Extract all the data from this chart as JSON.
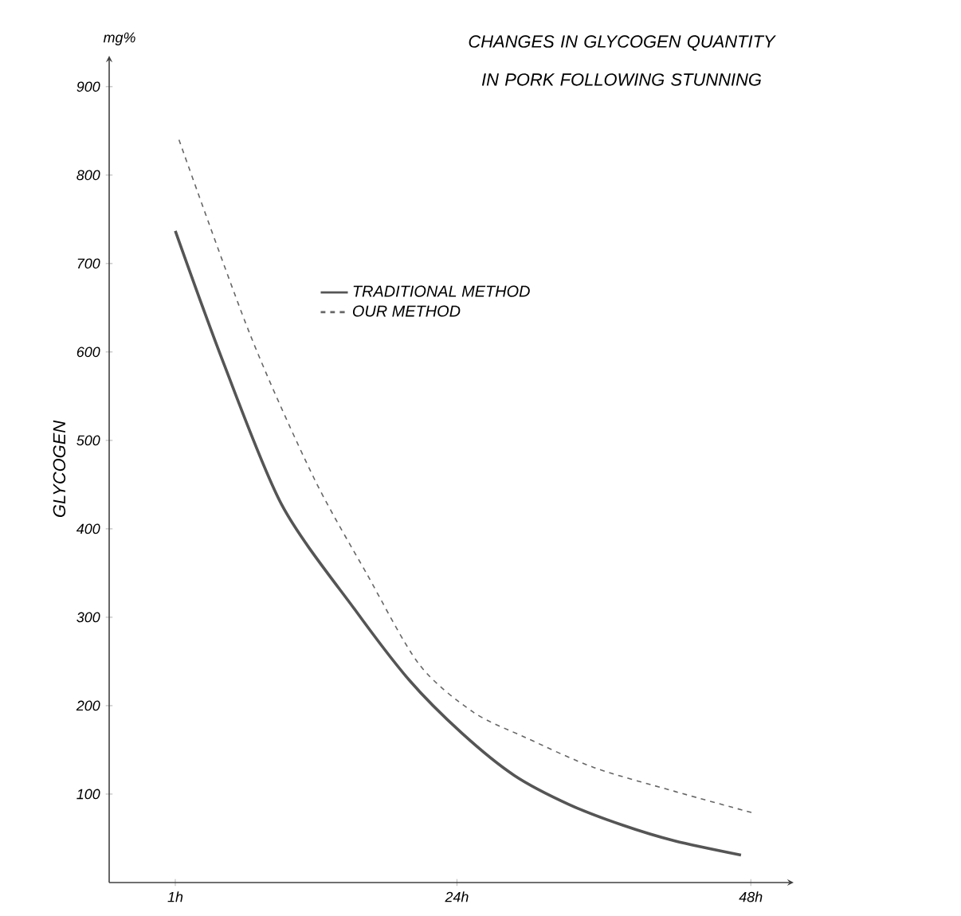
{
  "chart_data": {
    "type": "line",
    "title": "CHANGES IN GLYCOGEN QUANTITY IN PORK FOLLOWING STUNNING",
    "ylabel": "GLYCOGEN",
    "annotations": [
      "mg%"
    ],
    "xlim": [
      -4.4,
      51.5
    ],
    "ylim": [
      0,
      935
    ],
    "xticks": [
      {
        "value": 1,
        "label": "1h"
      },
      {
        "value": 24,
        "label": "24h"
      },
      {
        "value": 48,
        "label": "48h"
      }
    ],
    "yticks": [
      100,
      200,
      300,
      400,
      500,
      600,
      700,
      800,
      900
    ],
    "legend": "top",
    "grid": false,
    "marker": "none",
    "series": [
      {
        "name": "TRADITIONAL METHOD",
        "color": "#555555",
        "line_style": "solid",
        "x": [
          1,
          4.9,
          9.7,
          15.7,
          20.1,
          24.4,
          28.7,
          33.2,
          37.5,
          41.8,
          47.2
        ],
        "values": [
          737,
          589,
          427,
          308,
          229,
          169,
          121,
          88,
          65,
          47,
          31
        ]
      },
      {
        "name": "OUR METHOD",
        "color": "#666666",
        "line_style": "dashed",
        "x": [
          1.3,
          7.1,
          12.3,
          16.6,
          20.9,
          25.3,
          29.6,
          35.2,
          41.8,
          48.1
        ],
        "values": [
          840,
          620,
          458,
          350,
          247,
          193,
          164,
          130,
          103,
          79
        ]
      }
    ]
  }
}
